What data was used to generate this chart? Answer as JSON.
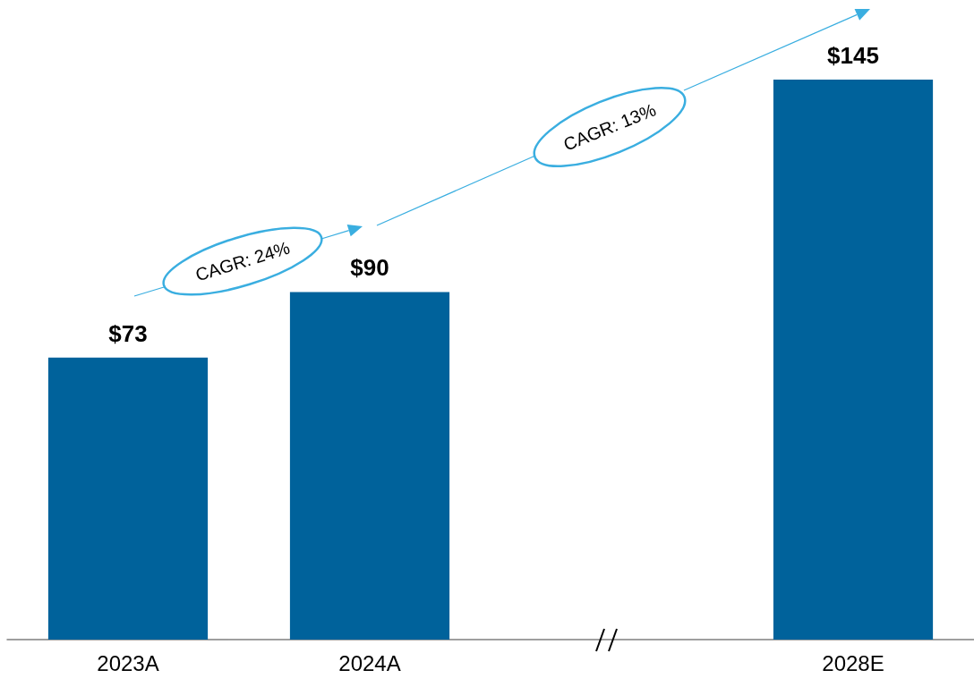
{
  "chart_data": {
    "type": "bar",
    "categories": [
      "2023A",
      "2024A",
      null,
      "2028E"
    ],
    "values": [
      73,
      90,
      null,
      145
    ],
    "color": "#00629b",
    "value_labels": [
      "$73",
      "$90",
      null,
      "$145"
    ],
    "grid": false,
    "annotations": [
      "CAGR: 24%",
      "CAGR: 13%"
    ]
  }
}
